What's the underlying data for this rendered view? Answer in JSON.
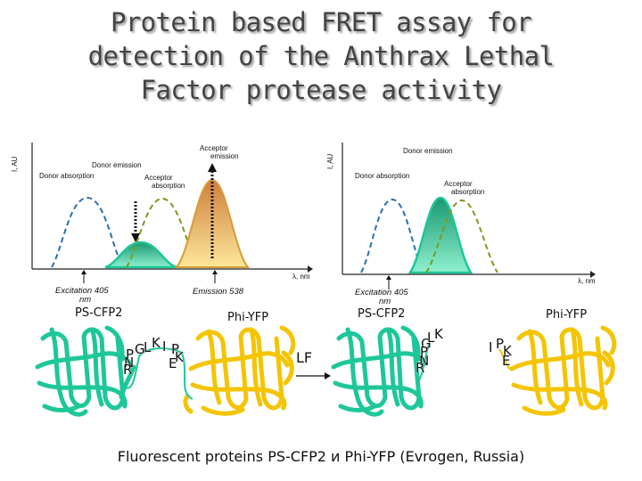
{
  "title": "Protein based FRET assay for detection of the Anthrax Lethal Factor protease activity",
  "left_panel": {
    "y_axis": "I, AU",
    "x_axis": "λ, nm",
    "donor_emission": "Donor emission",
    "donor_absorption": "Donor absorption",
    "acceptor_absorption": "Acceptor absorption",
    "acceptor_emission": "Acceptor emission",
    "excitation": "Excitation 405 nm",
    "emission": "Emission 538"
  },
  "right_panel": {
    "y_axis": "I, AU",
    "x_axis": "λ, nm",
    "donor_emission": "Donor emission",
    "donor_absorption": "Donor absorption",
    "acceptor_absorption": "Acceptor absorption",
    "excitation": "Excitation 405 nm"
  },
  "proteins": {
    "left_donor": "PS-CFP2",
    "left_acceptor": "Phi-YFP",
    "right_donor": "PS-CFP2",
    "right_acceptor": "Phi-YFP"
  },
  "arrow_label": "LF",
  "linker_residues": [
    "P",
    "G",
    "L",
    "K",
    "I",
    "P",
    "K",
    "E",
    "N",
    "R"
  ],
  "caption": "Fluorescent proteins PS-CFP2 и Phi-YFP (Evrogen, Russia)",
  "colors": {
    "donor": "#1ec79a",
    "acceptor": "#f5c400",
    "donor_absorption_line": "#2a6fb0",
    "acceptor_absorption_line": "#7c9a1e",
    "acceptor_emission_fill": "#f0b25a"
  }
}
